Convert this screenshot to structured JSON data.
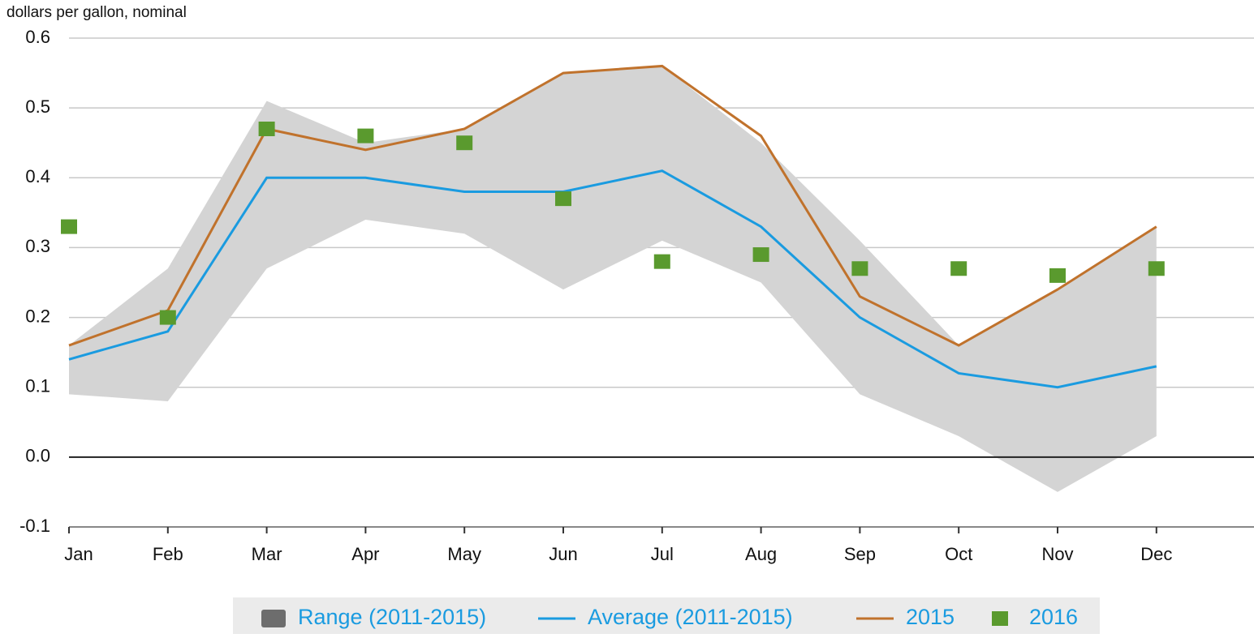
{
  "chart_data": {
    "type": "line",
    "y_axis_label": "dollars per gallon, nominal",
    "categories": [
      "Jan",
      "Feb",
      "Mar",
      "Apr",
      "May",
      "Jun",
      "Jul",
      "Aug",
      "Sep",
      "Oct",
      "Nov",
      "Dec"
    ],
    "ylim": [
      -0.1,
      0.6
    ],
    "yticks": [
      -0.1,
      {
        "value": 0,
        "label": "0.0"
      },
      0.1,
      0.2,
      0.3,
      0.4,
      0.5,
      0.6
    ],
    "grid": true,
    "legend": "bottom",
    "series": [
      {
        "name": "Range (2011-2015)",
        "type": "range",
        "color": "#d4d4d4",
        "legend_color": "#6d6d6d",
        "high": [
          0.16,
          0.27,
          0.51,
          0.45,
          0.47,
          0.55,
          0.56,
          0.45,
          0.31,
          0.16,
          0.24,
          0.33
        ],
        "low": [
          0.09,
          0.08,
          0.27,
          0.34,
          0.32,
          0.24,
          0.31,
          0.25,
          0.09,
          0.03,
          -0.05,
          0.03
        ]
      },
      {
        "name": "Average (2011-2015)",
        "type": "line",
        "color": "#1a9be0",
        "values": [
          0.14,
          0.18,
          0.4,
          0.4,
          0.38,
          0.38,
          0.41,
          0.33,
          0.2,
          0.12,
          0.1,
          0.13
        ]
      },
      {
        "name": "2015",
        "type": "line",
        "color": "#c0722c",
        "values": [
          0.16,
          0.21,
          0.47,
          0.44,
          0.47,
          0.55,
          0.56,
          0.46,
          0.23,
          0.16,
          0.24,
          0.33
        ]
      },
      {
        "name": "2016",
        "type": "scatter",
        "color": "#5a9a2e",
        "values": [
          0.33,
          0.2,
          0.47,
          0.46,
          0.45,
          0.37,
          0.28,
          0.29,
          0.27,
          0.27,
          0.26,
          0.27
        ]
      }
    ]
  }
}
